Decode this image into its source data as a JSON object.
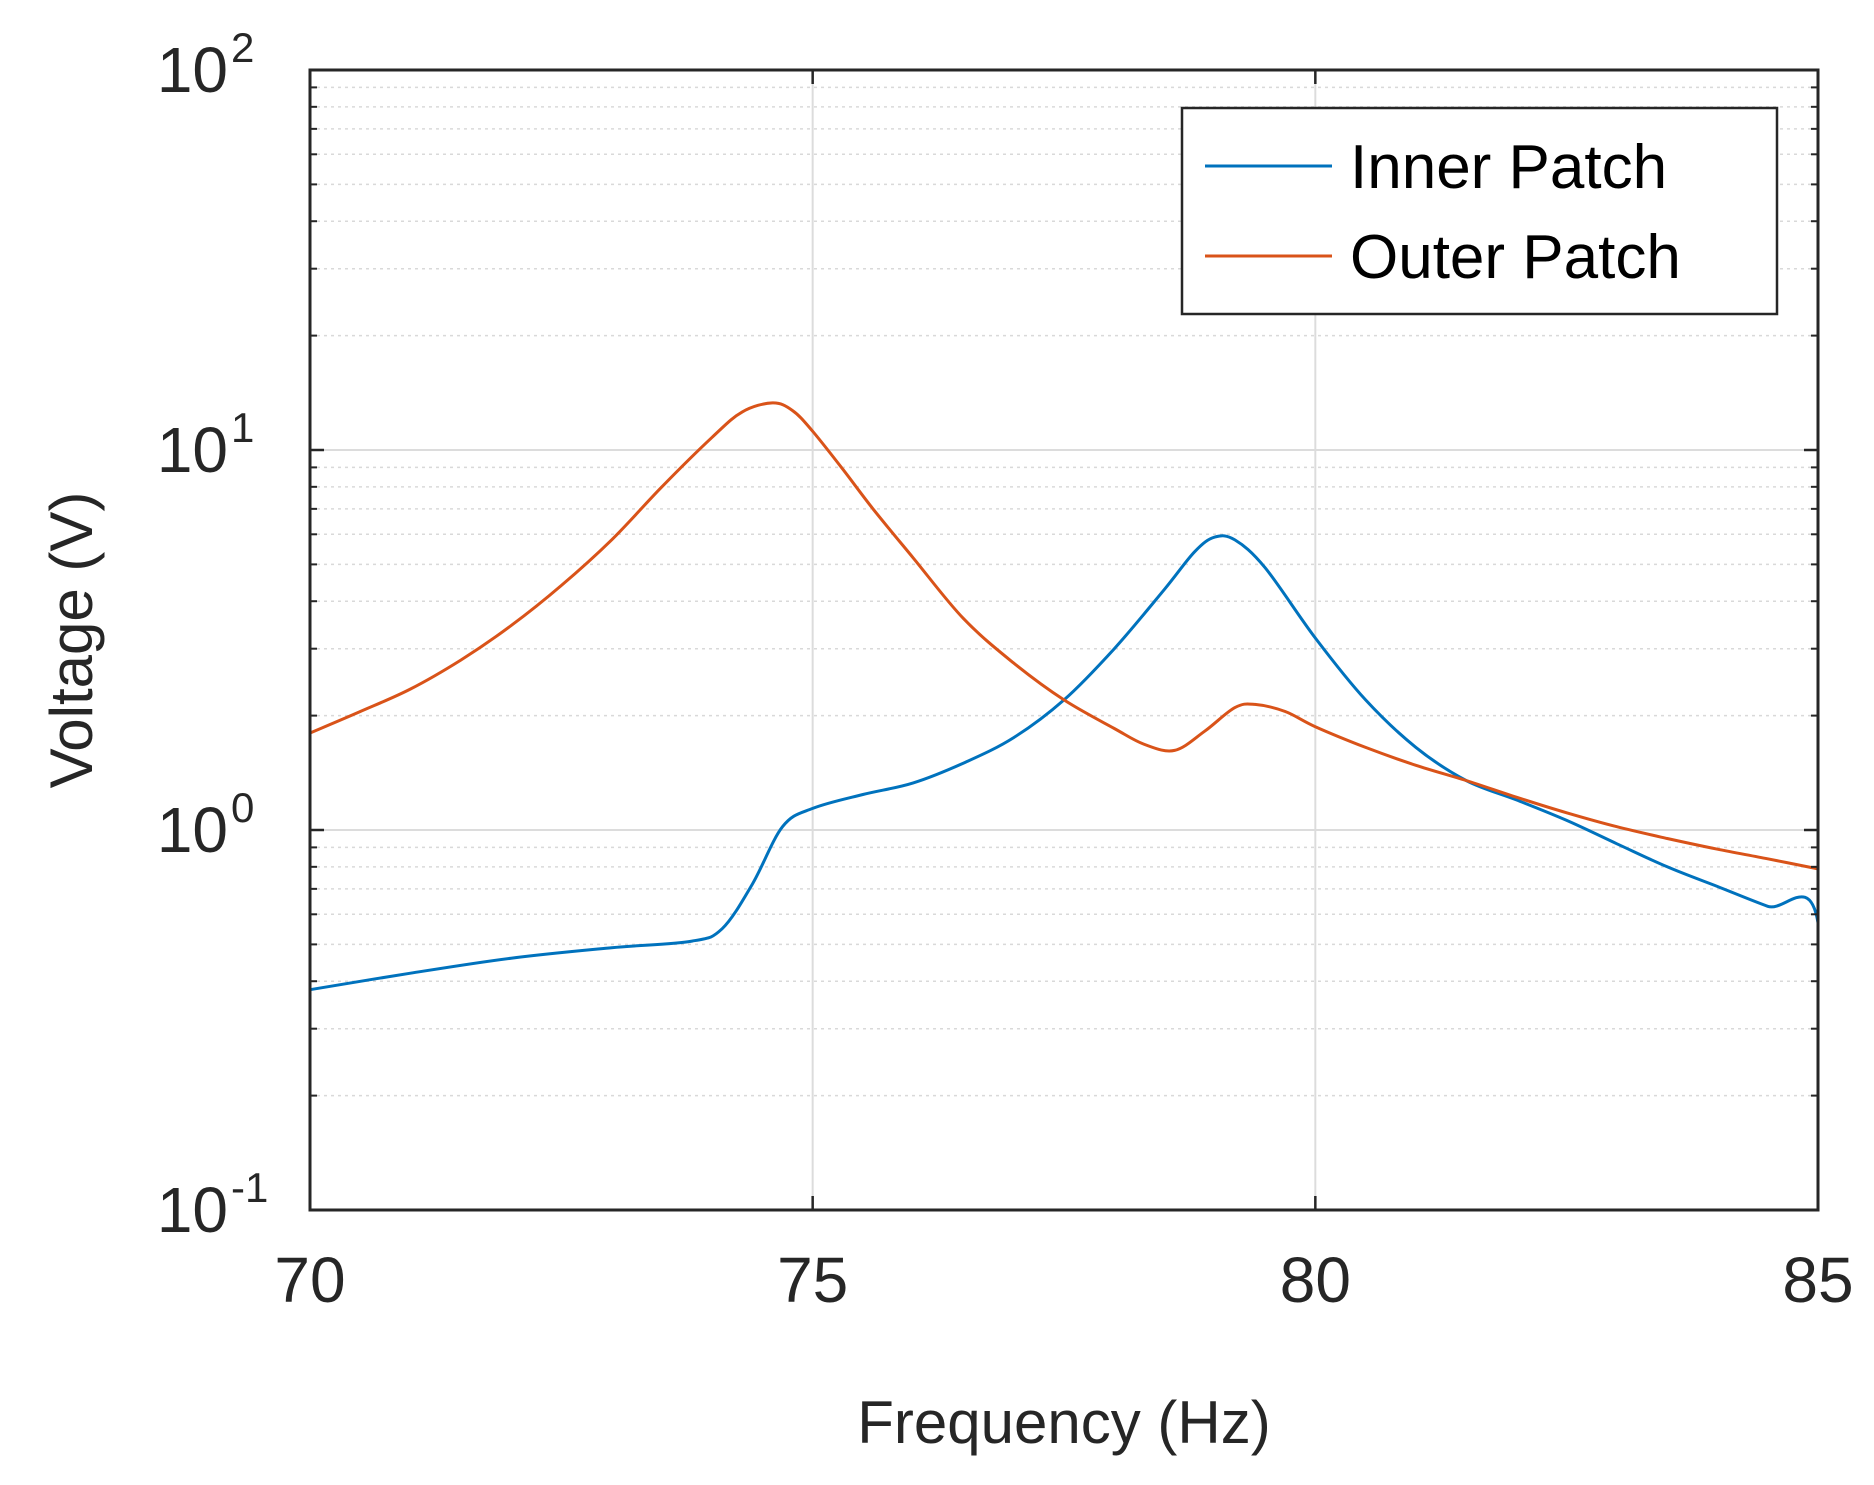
{
  "chart_data": {
    "type": "line",
    "title": "",
    "xlabel": "Frequency (Hz)",
    "ylabel": "Voltage (V)",
    "xlim": [
      70,
      85
    ],
    "ylim": [
      0.1,
      100
    ],
    "yscale": "log",
    "grid": true,
    "legend_position": "top-right",
    "x_ticks": [
      {
        "value": 70,
        "label": "70"
      },
      {
        "value": 75,
        "label": "75"
      },
      {
        "value": 80,
        "label": "80"
      },
      {
        "value": 85,
        "label": "85"
      }
    ],
    "y_ticks": [
      {
        "value": 0.1,
        "base": "10",
        "exp": "-1"
      },
      {
        "value": 1,
        "base": "10",
        "exp": "0"
      },
      {
        "value": 10,
        "base": "10",
        "exp": "1"
      },
      {
        "value": 100,
        "base": "10",
        "exp": "2"
      }
    ],
    "series": [
      {
        "name": "Inner Patch",
        "color": "#0072BD",
        "points": [
          [
            70.0,
            0.38
          ],
          [
            71.0,
            0.42
          ],
          [
            72.0,
            0.46
          ],
          [
            73.0,
            0.49
          ],
          [
            73.8,
            0.51
          ],
          [
            74.1,
            0.55
          ],
          [
            74.4,
            0.72
          ],
          [
            74.7,
            1.02
          ],
          [
            75.0,
            1.14
          ],
          [
            75.5,
            1.24
          ],
          [
            76.0,
            1.33
          ],
          [
            76.5,
            1.5
          ],
          [
            77.0,
            1.75
          ],
          [
            77.5,
            2.2
          ],
          [
            78.0,
            3.0
          ],
          [
            78.5,
            4.3
          ],
          [
            78.8,
            5.4
          ],
          [
            79.0,
            5.9
          ],
          [
            79.2,
            5.8
          ],
          [
            79.5,
            4.9
          ],
          [
            80.0,
            3.2
          ],
          [
            80.5,
            2.2
          ],
          [
            81.0,
            1.65
          ],
          [
            81.5,
            1.35
          ],
          [
            82.0,
            1.2
          ],
          [
            82.5,
            1.06
          ],
          [
            83.0,
            0.92
          ],
          [
            83.5,
            0.8
          ],
          [
            84.0,
            0.71
          ],
          [
            84.5,
            0.63
          ],
          [
            85.0,
            0.57
          ],
          [
            85.0,
            0.1
          ]
        ]
      },
      {
        "name": "Outer Patch",
        "color": "#D95319",
        "points": [
          [
            70.0,
            1.8
          ],
          [
            70.5,
            2.05
          ],
          [
            71.0,
            2.35
          ],
          [
            71.5,
            2.8
          ],
          [
            72.0,
            3.45
          ],
          [
            72.5,
            4.4
          ],
          [
            73.0,
            5.8
          ],
          [
            73.5,
            8.0
          ],
          [
            74.0,
            10.8
          ],
          [
            74.3,
            12.6
          ],
          [
            74.6,
            13.3
          ],
          [
            74.8,
            12.7
          ],
          [
            75.0,
            11.2
          ],
          [
            75.3,
            8.9
          ],
          [
            75.6,
            7.0
          ],
          [
            76.0,
            5.2
          ],
          [
            76.5,
            3.6
          ],
          [
            77.0,
            2.75
          ],
          [
            77.5,
            2.2
          ],
          [
            78.0,
            1.85
          ],
          [
            78.3,
            1.68
          ],
          [
            78.6,
            1.62
          ],
          [
            78.9,
            1.82
          ],
          [
            79.2,
            2.1
          ],
          [
            79.4,
            2.14
          ],
          [
            79.7,
            2.05
          ],
          [
            80.0,
            1.87
          ],
          [
            80.5,
            1.65
          ],
          [
            81.0,
            1.48
          ],
          [
            81.5,
            1.35
          ],
          [
            82.0,
            1.22
          ],
          [
            82.5,
            1.11
          ],
          [
            83.0,
            1.02
          ],
          [
            83.5,
            0.95
          ],
          [
            84.0,
            0.89
          ],
          [
            84.5,
            0.84
          ],
          [
            85.0,
            0.79
          ]
        ]
      }
    ]
  }
}
